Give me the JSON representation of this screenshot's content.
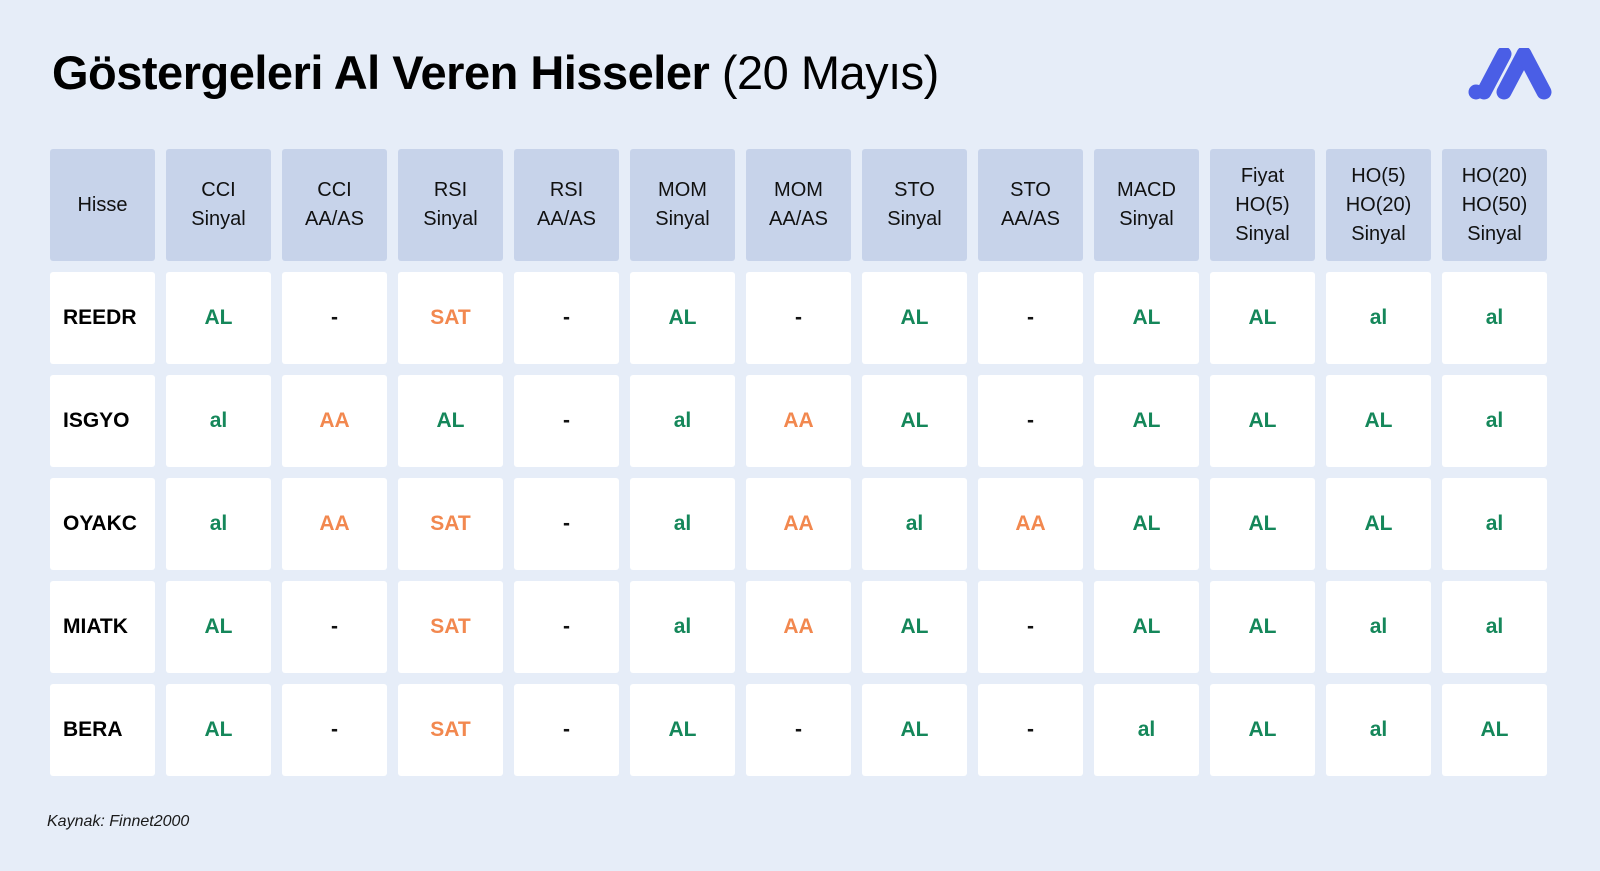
{
  "title": {
    "main": "Göstergeleri Al Veren Hisseler",
    "date": "(20 Mayıs)"
  },
  "colors": {
    "background": "#e6edf8",
    "header": "#c7d3ea",
    "buy": "#15875a",
    "sell": "#f2884f",
    "logo": "#4a5ee6"
  },
  "logo_icon": "brand-logo-icon",
  "table": {
    "headers": [
      "Hisse",
      "CCI\nSinyal",
      "CCI\nAA/AS",
      "RSI\nSinyal",
      "RSI\nAA/AS",
      "MOM\nSinyal",
      "MOM\nAA/AS",
      "STO\nSinyal",
      "STO\nAA/AS",
      "MACD\nSinyal",
      "Fiyat\nHO(5)\nSinyal",
      "HO(5)\nHO(20)\nSinyal",
      "HO(20)\nHO(50)\nSinyal"
    ],
    "rows": [
      [
        "REEDR",
        "AL",
        "-",
        "SAT",
        "-",
        "AL",
        "-",
        "AL",
        "-",
        "AL",
        "AL",
        "al",
        "al"
      ],
      [
        "ISGYO",
        "al",
        "AA",
        "AL",
        "-",
        "al",
        "AA",
        "AL",
        "-",
        "AL",
        "AL",
        "AL",
        "al"
      ],
      [
        "OYAKC",
        "al",
        "AA",
        "SAT",
        "-",
        "al",
        "AA",
        "al",
        "AA",
        "AL",
        "AL",
        "AL",
        "al"
      ],
      [
        "MIATK",
        "AL",
        "-",
        "SAT",
        "-",
        "al",
        "AA",
        "AL",
        "-",
        "AL",
        "AL",
        "al",
        "al"
      ],
      [
        "BERA",
        "AL",
        "-",
        "SAT",
        "-",
        "AL",
        "-",
        "AL",
        "-",
        "al",
        "AL",
        "al",
        "AL"
      ]
    ]
  },
  "source": "Kaynak: Finnet2000"
}
